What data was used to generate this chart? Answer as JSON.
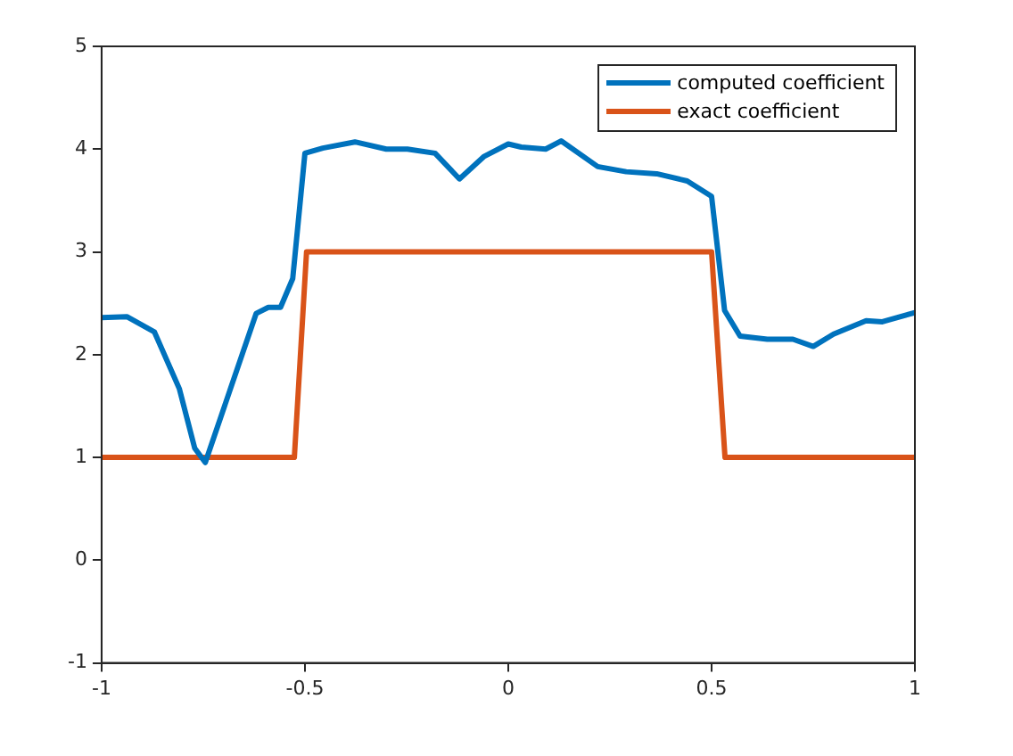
{
  "chart_data": {
    "type": "line",
    "xlim": [
      -1,
      1
    ],
    "xticks": [
      -1,
      -0.5,
      0,
      0.5,
      1
    ],
    "ylim": [
      -1,
      5
    ],
    "yticks": [
      -1,
      0,
      1,
      2,
      3,
      4,
      5
    ],
    "grid": false,
    "legend": "top right",
    "marker": "none",
    "line_style": "solid",
    "series": [
      {
        "name": "computed coefficient",
        "color": "#0072bd",
        "x": [
          -1,
          -0.938,
          -0.87,
          -0.809,
          -0.771,
          -0.745,
          -0.733,
          -0.62,
          -0.59,
          -0.56,
          -0.53,
          -0.5,
          -0.456,
          -0.377,
          -0.3,
          -0.248,
          -0.18,
          -0.12,
          -0.059,
          0,
          0.032,
          0.092,
          0.13,
          0.22,
          0.29,
          0.365,
          0.44,
          0.5,
          0.532,
          0.57,
          0.637,
          0.7,
          0.75,
          0.8,
          0.88,
          0.92,
          1
        ],
        "values": [
          2.36,
          2.37,
          2.22,
          1.67,
          1.09,
          0.95,
          1.09,
          2.4,
          2.46,
          2.46,
          2.74,
          3.96,
          4.01,
          4.07,
          4,
          4,
          3.96,
          3.71,
          3.93,
          4.05,
          4.02,
          4,
          4.08,
          3.83,
          3.78,
          3.76,
          3.69,
          3.54,
          2.43,
          2.18,
          2.15,
          2.15,
          2.08,
          2.2,
          2.33,
          2.32,
          2.41
        ]
      },
      {
        "name": "exact coefficient",
        "color": "#d95319",
        "x": [
          -1,
          -0.526,
          -0.496,
          0.5,
          0.533,
          1
        ],
        "values": [
          1,
          1,
          3,
          3,
          1,
          1
        ]
      }
    ]
  }
}
